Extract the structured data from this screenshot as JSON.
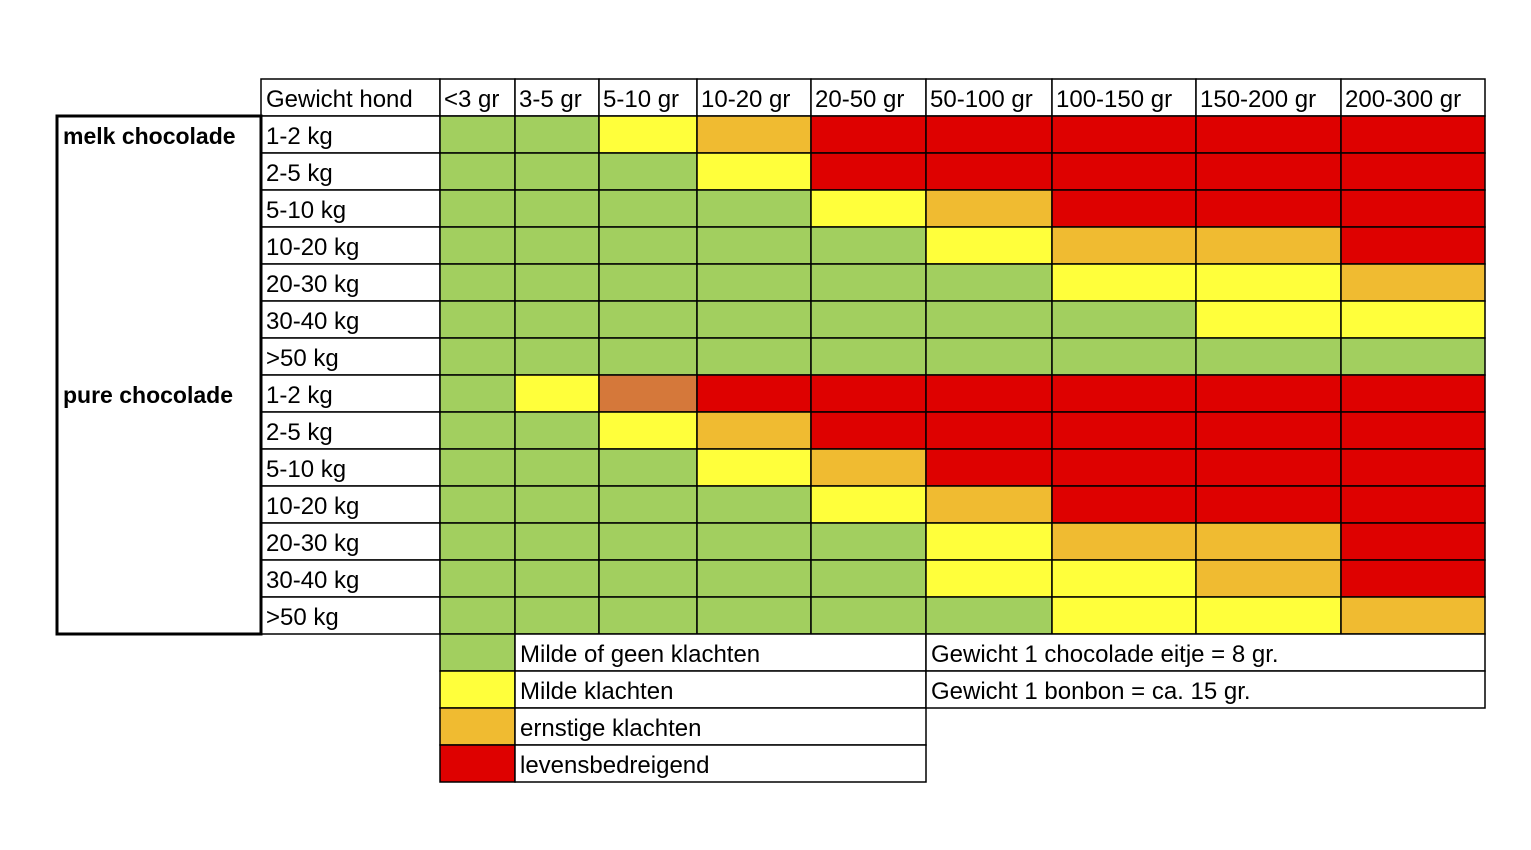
{
  "chart_data": {
    "type": "heatmap",
    "title": "",
    "corner_label": "Gewicht hond",
    "columns": [
      "<3 gr",
      "3-5 gr",
      "5-10 gr",
      "10-20 gr",
      "20-50 gr",
      "50-100 gr",
      "100-150 gr",
      "150-200 gr",
      "200-300 gr"
    ],
    "groups": [
      {
        "label": "melk chocolade",
        "rows": [
          {
            "label": "1-2 kg",
            "levels": [
              0,
              0,
              1,
              2,
              3,
              3,
              3,
              3,
              3
            ]
          },
          {
            "label": "2-5 kg",
            "levels": [
              0,
              0,
              0,
              1,
              3,
              3,
              3,
              3,
              3
            ]
          },
          {
            "label": "5-10 kg",
            "levels": [
              0,
              0,
              0,
              0,
              1,
              2,
              3,
              3,
              3
            ]
          },
          {
            "label": "10-20 kg",
            "levels": [
              0,
              0,
              0,
              0,
              0,
              1,
              2,
              2,
              3
            ]
          },
          {
            "label": "20-30 kg",
            "levels": [
              0,
              0,
              0,
              0,
              0,
              0,
              1,
              1,
              2
            ]
          },
          {
            "label": "30-40 kg",
            "levels": [
              0,
              0,
              0,
              0,
              0,
              0,
              0,
              1,
              1
            ]
          },
          {
            "label": ">50 kg",
            "levels": [
              0,
              0,
              0,
              0,
              0,
              0,
              0,
              0,
              0
            ]
          }
        ]
      },
      {
        "label": "pure chocolade",
        "rows": [
          {
            "label": "1-2 kg",
            "levels": [
              0,
              1,
              4,
              3,
              3,
              3,
              3,
              3,
              3
            ]
          },
          {
            "label": "2-5 kg",
            "levels": [
              0,
              0,
              1,
              2,
              3,
              3,
              3,
              3,
              3
            ]
          },
          {
            "label": "5-10 kg",
            "levels": [
              0,
              0,
              0,
              1,
              2,
              3,
              3,
              3,
              3
            ]
          },
          {
            "label": "10-20 kg",
            "levels": [
              0,
              0,
              0,
              0,
              1,
              2,
              3,
              3,
              3
            ]
          },
          {
            "label": "20-30 kg",
            "levels": [
              0,
              0,
              0,
              0,
              0,
              1,
              2,
              2,
              3
            ]
          },
          {
            "label": "30-40 kg",
            "levels": [
              0,
              0,
              0,
              0,
              0,
              1,
              1,
              2,
              3
            ]
          },
          {
            "label": ">50 kg",
            "levels": [
              0,
              0,
              0,
              0,
              0,
              0,
              1,
              1,
              2
            ]
          }
        ]
      }
    ],
    "level_colors": [
      "#a2cf5f",
      "#ffff3b",
      "#f0bb31",
      "#de0100",
      "#d5783a"
    ],
    "legend": [
      {
        "level": 0,
        "label": "Milde of geen klachten"
      },
      {
        "level": 1,
        "label": "Milde klachten"
      },
      {
        "level": 2,
        "label": "ernstige klachten"
      },
      {
        "level": 3,
        "label": "levensbedreigend"
      }
    ],
    "notes": [
      "Gewicht 1 chocolade eitje = 8 gr.",
      "Gewicht 1 bonbon = ca. 15 gr."
    ]
  }
}
